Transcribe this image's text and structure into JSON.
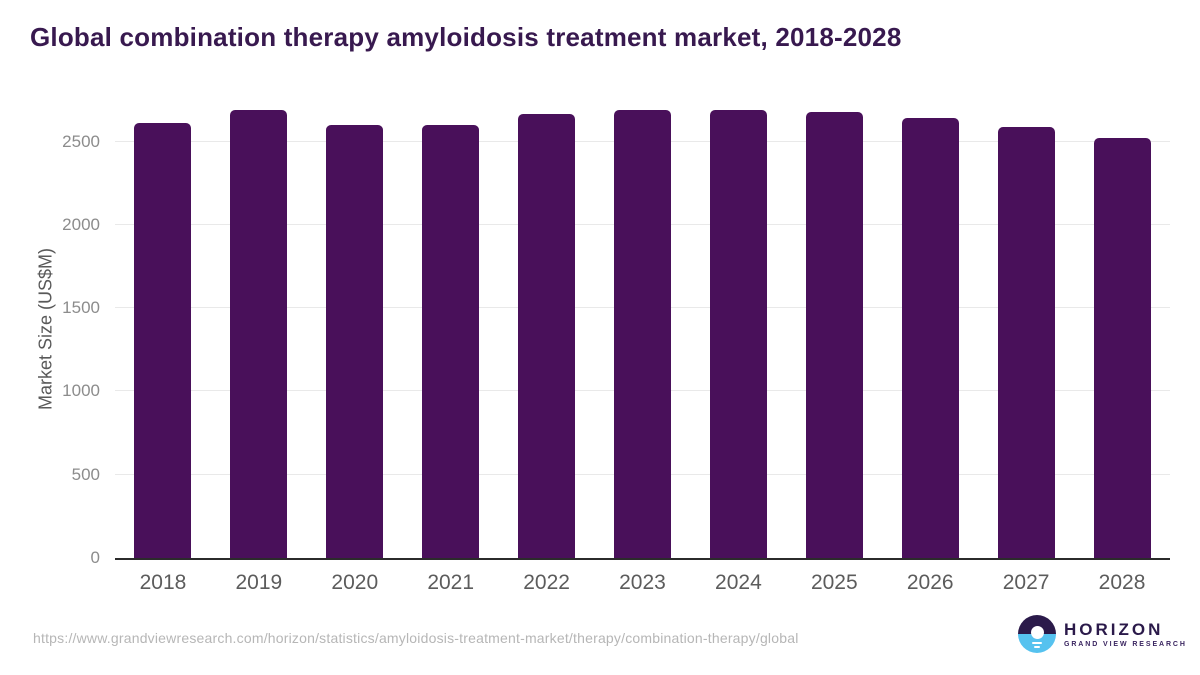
{
  "title": "Global combination therapy amyloidosis treatment market, 2018-2028",
  "chart_data": {
    "type": "bar",
    "title": "Global combination therapy amyloidosis treatment market, 2018-2028",
    "categories": [
      "2018",
      "2019",
      "2020",
      "2021",
      "2022",
      "2023",
      "2024",
      "2025",
      "2026",
      "2027",
      "2028"
    ],
    "values": [
      2610,
      2692,
      2597,
      2601,
      2667,
      2691,
      2689,
      2678,
      2641,
      2586,
      2523
    ],
    "xlabel": "",
    "ylabel": "Market Size (US$M)",
    "ylim": [
      0,
      2750
    ],
    "yticks": [
      0,
      500,
      1000,
      1500,
      2000,
      2500
    ],
    "grid": true,
    "legend": false,
    "bar_color": "#49105a"
  },
  "colors": {
    "title_text": "#38194f",
    "bar": "#49105a",
    "gridline": "#e9e9e9",
    "axis_line": "#2b2b2b",
    "ytick_text": "#8c8c8c",
    "xtick_text": "#5c5c5c",
    "url_text": "#b6b6b6",
    "logo_dark": "#2b1a4a",
    "logo_blue": "#56c2ef"
  },
  "footer": {
    "url": "https://www.grandviewresearch.com/horizon/statistics/amyloidosis-treatment-market/therapy/combination-therapy/global",
    "logo": {
      "name": "HORIZON",
      "subtitle": "GRAND VIEW RESEARCH"
    }
  }
}
